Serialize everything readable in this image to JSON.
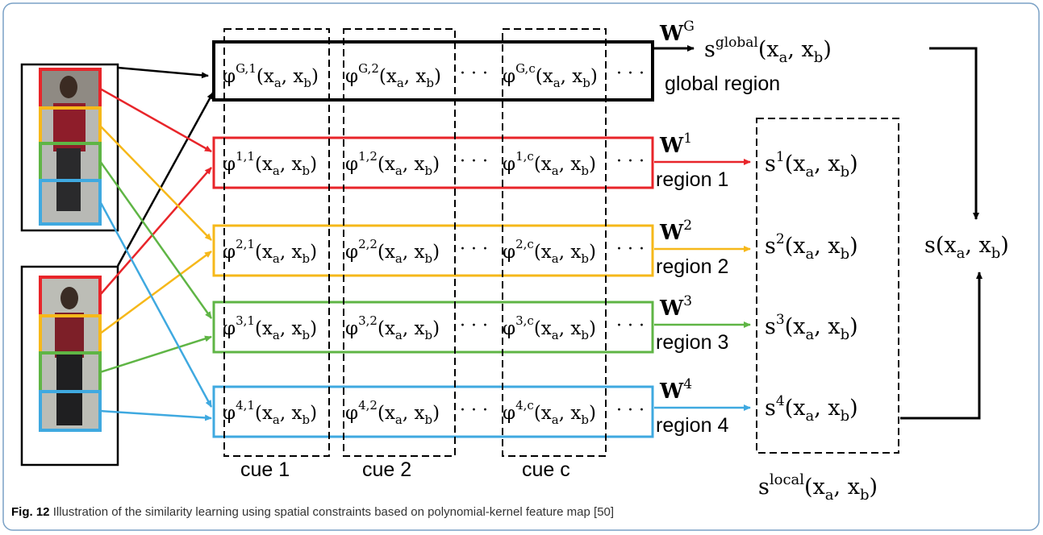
{
  "figure": {
    "caption_label": "Fig. 12",
    "caption_text": "Illustration of the similarity learning using spatial constraints based on polynomial-kernel feature map [50]"
  },
  "colors": {
    "global": "#000000",
    "region1": "#e8252a",
    "region2": "#f6b81a",
    "region3": "#5fb545",
    "region4": "#3fa9e0",
    "frame": "#7aa1c6"
  },
  "rows": [
    {
      "key": "global",
      "sup": "G",
      "weight_sup": "G",
      "label": "global region",
      "s_sup": "global"
    },
    {
      "key": "r1",
      "sup": "1",
      "weight_sup": "1",
      "label": "region 1",
      "s_sup": "1"
    },
    {
      "key": "r2",
      "sup": "2",
      "weight_sup": "2",
      "label": "region 2",
      "s_sup": "2"
    },
    {
      "key": "r3",
      "sup": "3",
      "weight_sup": "3",
      "label": "region 3",
      "s_sup": "3"
    },
    {
      "key": "r4",
      "sup": "4",
      "weight_sup": "4",
      "label": "region 4",
      "s_sup": "4"
    }
  ],
  "cues": [
    "cue 1",
    "cue 2",
    "cue c"
  ],
  "cell_cue_index": [
    "1",
    "2",
    "c"
  ],
  "ellipsis": "· · ·",
  "math": {
    "phi": "φ",
    "weight_symbol": "W",
    "s_symbol": "s",
    "args": "(x",
    "sub_a": "a",
    "comma": ", x",
    "sub_b": "b",
    "close": ")"
  },
  "local_label_sup": "local",
  "final_score": "s(x",
  "final_sub_a": "a",
  "final_mid": ", x",
  "final_sub_b": "b",
  "final_close": ")"
}
